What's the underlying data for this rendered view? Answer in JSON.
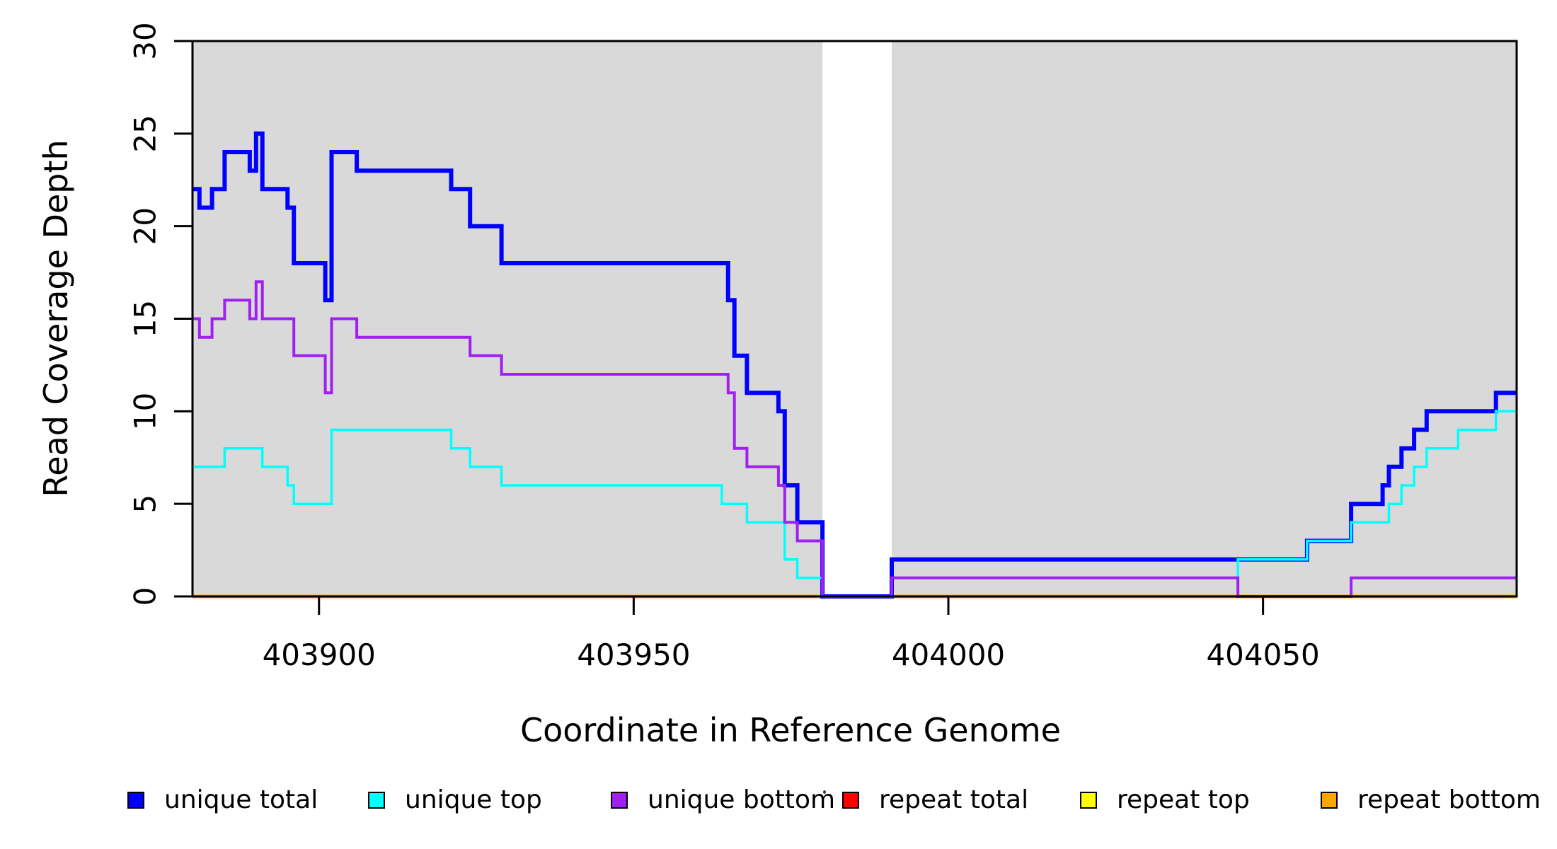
{
  "figure": {
    "background": "#FFFFFF",
    "text_color": "#000000",
    "shaded_region_color": "#D9D9D9"
  },
  "chart_data": {
    "type": "line",
    "step": true,
    "title": "",
    "xlabel": "Coordinate in Reference Genome",
    "ylabel": "Read Coverage Depth",
    "xlim": [
      403879.9,
      404090.3
    ],
    "ylim": [
      0,
      30
    ],
    "x_ticks": [
      403900,
      403950,
      404000,
      404050
    ],
    "y_ticks": [
      0,
      5,
      10,
      15,
      20,
      25,
      30
    ],
    "grid": false,
    "legend_position": "bottom",
    "shaded_regions": [
      {
        "from": 403879.9,
        "to": 403980,
        "color": "#D9D9D9"
      },
      {
        "from": 403991,
        "to": 404090.3,
        "color": "#D9D9D9"
      }
    ],
    "series": [
      {
        "name": "repeat total",
        "color": "#FF0000",
        "width": 5,
        "segments": [
          [
            403879.9,
            404090.3,
            0
          ]
        ]
      },
      {
        "name": "repeat top",
        "color": "#FFFF00",
        "width": 5,
        "segments": [
          [
            403879.9,
            404090.3,
            0
          ]
        ]
      },
      {
        "name": "repeat bottom",
        "color": "#FFA500",
        "width": 5,
        "segments": [
          [
            403879.9,
            404090.3,
            0
          ]
        ]
      },
      {
        "name": "unique total",
        "color": "#0000FF",
        "width": 6,
        "segments": [
          [
            403879.9,
            403881,
            22
          ],
          [
            403881,
            403883,
            21
          ],
          [
            403883,
            403885,
            22
          ],
          [
            403885,
            403889,
            24
          ],
          [
            403889,
            403890,
            23
          ],
          [
            403890,
            403891,
            25
          ],
          [
            403891,
            403895,
            22
          ],
          [
            403895,
            403896,
            21
          ],
          [
            403896,
            403901,
            18
          ],
          [
            403901,
            403902,
            16
          ],
          [
            403902,
            403906,
            24
          ],
          [
            403906,
            403921,
            23
          ],
          [
            403921,
            403924,
            22
          ],
          [
            403924,
            403929,
            20
          ],
          [
            403929,
            403965,
            18
          ],
          [
            403965,
            403966,
            16
          ],
          [
            403966,
            403968,
            13
          ],
          [
            403968,
            403973,
            11
          ],
          [
            403973,
            403974,
            10
          ],
          [
            403974,
            403976,
            6
          ],
          [
            403976,
            403980,
            4
          ],
          [
            403980,
            403991,
            0
          ],
          [
            403991,
            404057,
            2
          ],
          [
            404057,
            404064,
            3
          ],
          [
            404064,
            404069,
            5
          ],
          [
            404069,
            404070,
            6
          ],
          [
            404070,
            404072,
            7
          ],
          [
            404072,
            404074,
            8
          ],
          [
            404074,
            404076,
            9
          ],
          [
            404076,
            404087,
            10
          ],
          [
            404087,
            404090.3,
            11
          ]
        ]
      },
      {
        "name": "unique top",
        "color": "#00FFFF",
        "width": 3.5,
        "segments": [
          [
            403879.9,
            403885,
            7
          ],
          [
            403885,
            403891,
            8
          ],
          [
            403891,
            403895,
            7
          ],
          [
            403895,
            403896,
            6
          ],
          [
            403896,
            403902,
            5
          ],
          [
            403902,
            403921,
            9
          ],
          [
            403921,
            403924,
            8
          ],
          [
            403924,
            403929,
            7
          ],
          [
            403929,
            403964,
            6
          ],
          [
            403964,
            403968,
            5
          ],
          [
            403968,
            403974,
            4
          ],
          [
            403974,
            403976,
            2
          ],
          [
            403976,
            403980,
            1
          ],
          [
            403980,
            403991,
            0
          ],
          [
            403991,
            404046,
            1
          ],
          [
            404046,
            404057,
            2
          ],
          [
            404057,
            404064,
            3
          ],
          [
            404064,
            404070,
            4
          ],
          [
            404070,
            404072,
            5
          ],
          [
            404072,
            404074,
            6
          ],
          [
            404074,
            404076,
            7
          ],
          [
            404076,
            404081,
            8
          ],
          [
            404081,
            404087,
            9
          ],
          [
            404087,
            404090.3,
            10
          ]
        ]
      },
      {
        "name": "unique bottom",
        "color": "#A020F0",
        "width": 4,
        "segments": [
          [
            403879.9,
            403881,
            15
          ],
          [
            403881,
            403883,
            14
          ],
          [
            403883,
            403885,
            15
          ],
          [
            403885,
            403889,
            16
          ],
          [
            403889,
            403890,
            15
          ],
          [
            403890,
            403891,
            17
          ],
          [
            403891,
            403896,
            15
          ],
          [
            403896,
            403901,
            13
          ],
          [
            403901,
            403902,
            11
          ],
          [
            403902,
            403906,
            15
          ],
          [
            403906,
            403924,
            14
          ],
          [
            403924,
            403929,
            13
          ],
          [
            403929,
            403965,
            12
          ],
          [
            403965,
            403966,
            11
          ],
          [
            403966,
            403968,
            8
          ],
          [
            403968,
            403973,
            7
          ],
          [
            403973,
            403974,
            6
          ],
          [
            403974,
            403976,
            4
          ],
          [
            403976,
            403980,
            3
          ],
          [
            403980,
            403991,
            0
          ],
          [
            403991,
            404046,
            1
          ],
          [
            404046,
            404064,
            0
          ],
          [
            404064,
            404090.3,
            1
          ]
        ]
      }
    ]
  },
  "legend": {
    "items": [
      {
        "label": "unique total",
        "color": "#0000FF"
      },
      {
        "label": "unique top",
        "color": "#00FFFF"
      },
      {
        "label": "unique bottom",
        "color": "#A020F0"
      },
      {
        "label": "repeat total",
        "color": "#FF0000"
      },
      {
        "label": "repeat top",
        "color": "#FFFF00"
      },
      {
        "label": "repeat bottom",
        "color": "#FFA500"
      }
    ]
  }
}
